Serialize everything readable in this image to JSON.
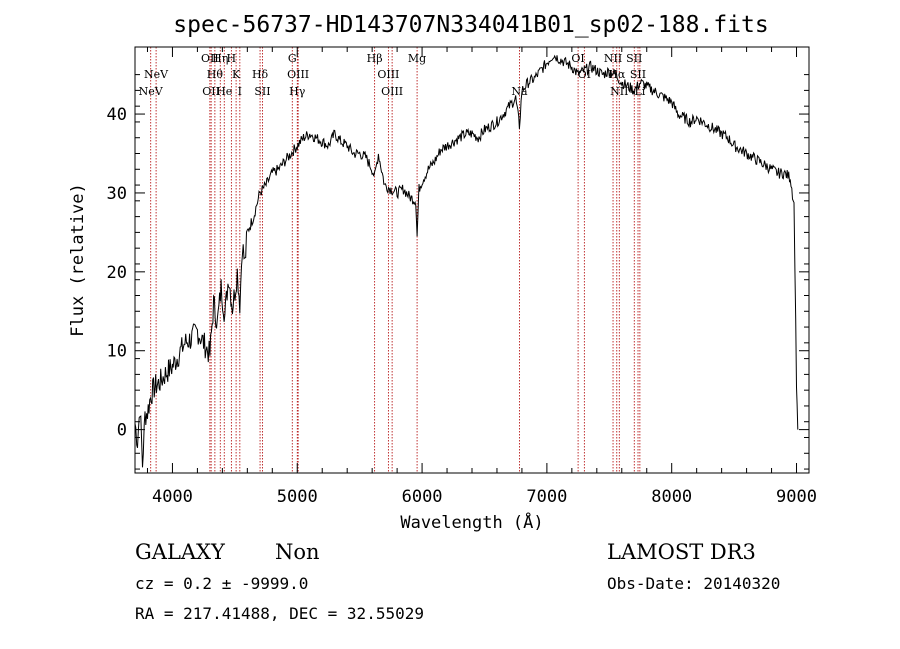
{
  "chart_data": {
    "type": "line",
    "title": "spec-56737-HD143707N334041B01_sp02-188.fits",
    "xlabel": "Wavelength (Å)",
    "ylabel": "Flux (relative)",
    "xlim": [
      3700,
      9100
    ],
    "ylim": [
      -5.5,
      48.5
    ],
    "x_ticks": [
      4000,
      5000,
      6000,
      7000,
      8000,
      9000
    ],
    "y_ticks": [
      0,
      10,
      20,
      30,
      40
    ],
    "line_color": "#000000",
    "marker_color": "#b00000",
    "series": [
      {
        "x": [
          3700,
          3720,
          3740,
          3760,
          3780,
          3800,
          3830,
          3860,
          3900,
          3950,
          4000,
          4050,
          4100,
          4150,
          4200,
          4250,
          4300,
          4330,
          4360,
          4390,
          4420,
          4450,
          4480,
          4500,
          4520,
          4540,
          4560,
          4580,
          4600,
          4650,
          4700,
          4750,
          4800,
          4850,
          4900,
          4950,
          5000,
          5050,
          5100,
          5150,
          5200,
          5250,
          5300,
          5350,
          5400,
          5450,
          5500,
          5550,
          5600,
          5620,
          5650,
          5700,
          5750,
          5800,
          5850,
          5900,
          5950,
          5960,
          5975,
          6000,
          6050,
          6100,
          6150,
          6200,
          6250,
          6300,
          6350,
          6400,
          6450,
          6500,
          6550,
          6600,
          6650,
          6700,
          6750,
          6780,
          6800,
          6850,
          6900,
          6950,
          7000,
          7050,
          7100,
          7150,
          7200,
          7250,
          7300,
          7350,
          7400,
          7450,
          7500,
          7550,
          7600,
          7650,
          7700,
          7750,
          7800,
          7850,
          7900,
          7950,
          8000,
          8050,
          8100,
          8150,
          8200,
          8250,
          8300,
          8350,
          8400,
          8450,
          8500,
          8550,
          8600,
          8650,
          8700,
          8750,
          8800,
          8850,
          8900,
          8950,
          8980,
          9000,
          9010
        ],
        "values": [
          0.8,
          -1.5,
          3.0,
          -4.5,
          1.8,
          2.2,
          4.5,
          5.5,
          6.0,
          7.2,
          8.0,
          9.5,
          11.0,
          11.5,
          12.5,
          11.0,
          9.5,
          16.0,
          13.5,
          18.0,
          14.5,
          19.5,
          15.5,
          17.5,
          20.0,
          16.0,
          23.5,
          21.0,
          25.0,
          27.0,
          30.0,
          31.0,
          32.5,
          33.0,
          34.0,
          35.0,
          36.0,
          37.0,
          37.5,
          37.0,
          36.5,
          36.0,
          37.5,
          36.5,
          36.0,
          35.0,
          35.0,
          34.5,
          33.0,
          32.0,
          35.0,
          31.0,
          30.5,
          30.0,
          30.5,
          29.5,
          29.0,
          24.5,
          30.5,
          31.5,
          33.0,
          34.0,
          35.5,
          36.0,
          36.5,
          37.0,
          37.5,
          37.5,
          37.0,
          38.0,
          38.5,
          39.0,
          40.0,
          41.0,
          42.0,
          38.5,
          43.0,
          44.0,
          44.5,
          45.5,
          46.5,
          47.5,
          47.0,
          46.5,
          46.0,
          45.0,
          45.5,
          46.0,
          45.5,
          45.0,
          45.5,
          45.0,
          44.0,
          43.5,
          43.0,
          44.0,
          43.5,
          43.0,
          42.5,
          42.0,
          41.5,
          40.0,
          39.5,
          39.0,
          39.5,
          39.0,
          38.5,
          38.0,
          37.5,
          37.0,
          36.0,
          35.5,
          35.0,
          34.5,
          34.0,
          33.5,
          33.0,
          32.5,
          32.5,
          32.0,
          28.5,
          6.0,
          0.0
        ]
      }
    ],
    "line_markers": [
      {
        "label": "NeV",
        "x": 3826,
        "row": 3
      },
      {
        "label": "NeV",
        "x": 3869,
        "row": 2
      },
      {
        "label": "OII",
        "x": 4300,
        "row": 1
      },
      {
        "label": "OII",
        "x": 4310,
        "row": 3
      },
      {
        "label": "Hθ",
        "x": 4340,
        "row": 2
      },
      {
        "label": "Hη",
        "x": 4383,
        "row": 1
      },
      {
        "label": "He",
        "x": 4415,
        "row": 3
      },
      {
        "label": "H",
        "x": 4472,
        "row": 1
      },
      {
        "label": "K",
        "x": 4510,
        "row": 2
      },
      {
        "label": "I",
        "x": 4540,
        "row": 3
      },
      {
        "label": "Hδ",
        "x": 4702,
        "row": 2
      },
      {
        "label": "SII",
        "x": 4721,
        "row": 3
      },
      {
        "label": "G",
        "x": 4960,
        "row": 1
      },
      {
        "label": "OIII",
        "x": 5007,
        "row": 2
      },
      {
        "label": "Hγ",
        "x": 5000,
        "row": 3
      },
      {
        "label": "Hβ",
        "x": 5620,
        "row": 1
      },
      {
        "label": "OIII",
        "x": 5730,
        "row": 2
      },
      {
        "label": "OIII",
        "x": 5760,
        "row": 3
      },
      {
        "label": "Mg",
        "x": 5960,
        "row": 1
      },
      {
        "label": "Na",
        "x": 6780,
        "row": 3
      },
      {
        "label": "OI",
        "x": 7250,
        "row": 1
      },
      {
        "label": "OI",
        "x": 7300,
        "row": 2
      },
      {
        "label": "NII",
        "x": 7530,
        "row": 1
      },
      {
        "label": "Hα",
        "x": 7560,
        "row": 2
      },
      {
        "label": "NII",
        "x": 7580,
        "row": 3
      },
      {
        "label": "SII",
        "x": 7700,
        "row": 1
      },
      {
        "label": "SII",
        "x": 7730,
        "row": 2
      },
      {
        "label": "Li",
        "x": 7745,
        "row": 3
      }
    ]
  },
  "info": {
    "classification": "GALAXY",
    "subclass": "Non",
    "survey": "LAMOST DR3",
    "cz": "cz = 0.2 ± -9999.0",
    "obs_date": "Obs-Date: 20140320",
    "coords": "RA = 217.41488, DEC =  32.55029"
  }
}
